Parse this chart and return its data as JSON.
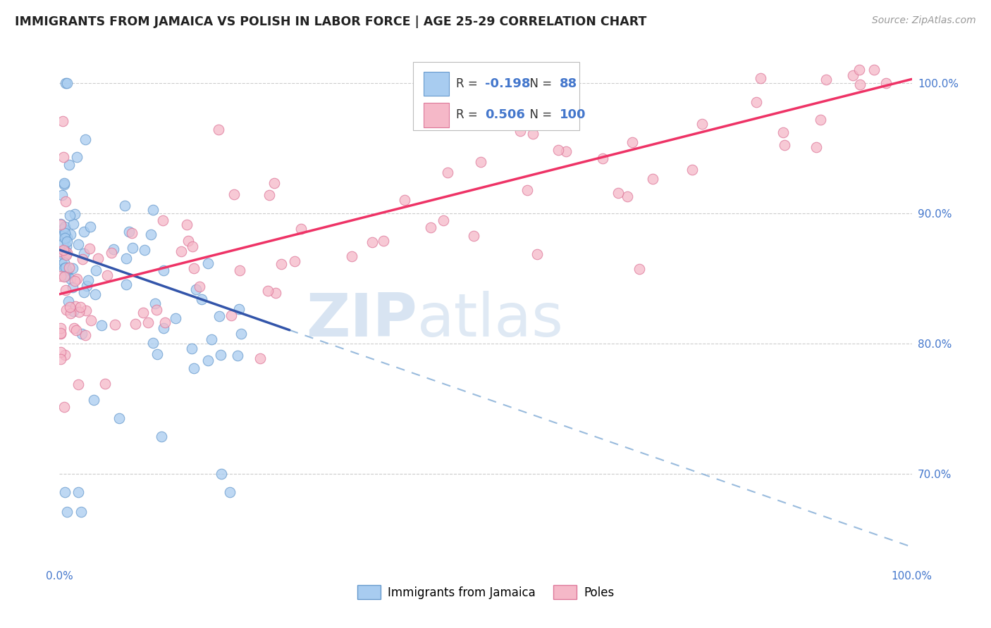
{
  "title": "IMMIGRANTS FROM JAMAICA VS POLISH IN LABOR FORCE | AGE 25-29 CORRELATION CHART",
  "source": "Source: ZipAtlas.com",
  "ylabel": "In Labor Force | Age 25-29",
  "xlim": [
    0.0,
    1.0
  ],
  "ylim": [
    0.63,
    1.03
  ],
  "y_ticks": [
    0.7,
    0.8,
    0.9,
    1.0
  ],
  "y_tick_labels": [
    "70.0%",
    "80.0%",
    "90.0%",
    "100.0%"
  ],
  "jamaica_fill": "#A8CCF0",
  "jamaica_edge": "#6699CC",
  "poles_fill": "#F5B8C8",
  "poles_edge": "#DD7799",
  "trend_blue": "#3355AA",
  "trend_pink": "#EE3366",
  "trend_dash_blue": "#99BBDD",
  "grid_color": "#CCCCCC",
  "bg_color": "#FFFFFF",
  "R_jamaica": -0.198,
  "N_jamaica": 88,
  "R_poles": 0.506,
  "N_poles": 100,
  "legend_jamaica": "Immigrants from Jamaica",
  "legend_poles": "Poles",
  "watermark_zip": "ZIP",
  "watermark_atlas": "atlas",
  "j_intercept": 0.872,
  "j_slope": -0.228,
  "p_intercept": 0.838,
  "p_slope": 0.165
}
